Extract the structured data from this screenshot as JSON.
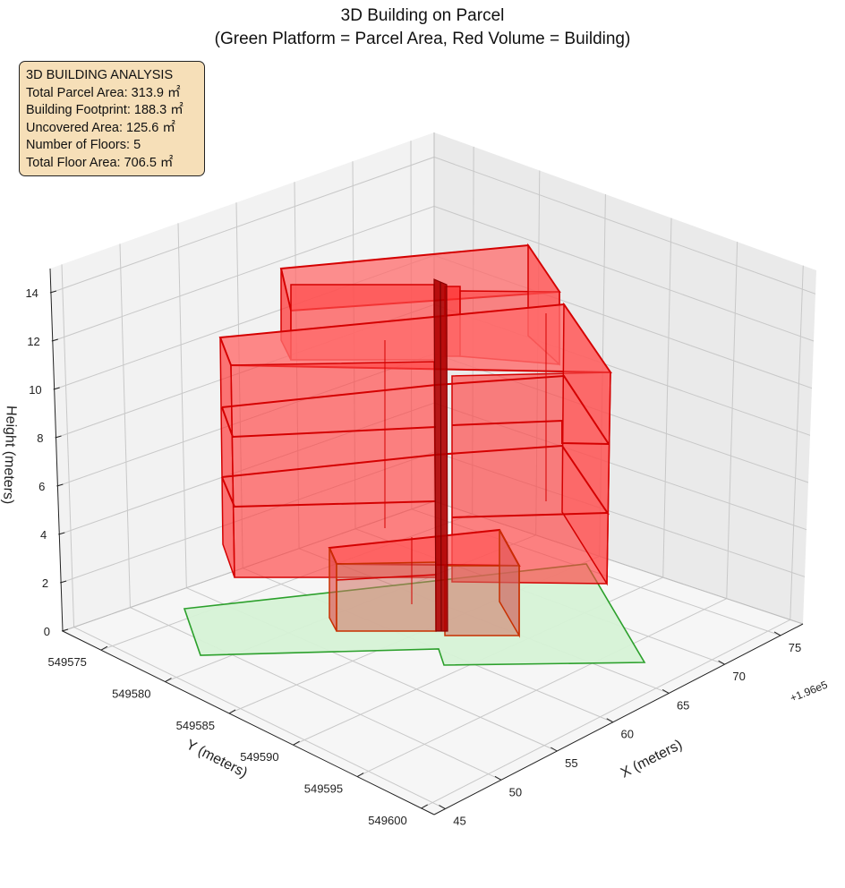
{
  "figure": {
    "title": "3D Building on Parcel",
    "subtitle": "(Green Platform = Parcel Area, Red Volume = Building)"
  },
  "info_box": {
    "heading": "3D BUILDING ANALYSIS",
    "lines": [
      "Total Parcel Area: 313.9 ㎡",
      "Building Footprint: 188.3 ㎡",
      "Uncovered Area: 125.6 ㎡",
      "Number of Floors: 5",
      "Total Floor Area: 706.5 ㎡"
    ]
  },
  "colors": {
    "parcel_fill": "#d6f2d6",
    "parcel_edge": "#2ca02c",
    "building_fill": "#ff3b3b",
    "building_edge": "#d40000",
    "pane": "#f2f2f2",
    "grid": "#c8c8c8",
    "info_box_bg": "#f5deb3"
  },
  "chart_data": {
    "type": "3d-polygons",
    "axes": {
      "x": {
        "label": "X (meters)",
        "ticks": [
          45,
          50,
          55,
          60,
          65,
          70,
          75
        ],
        "offset_label": "+1.96e5",
        "range": [
          44,
          77
        ]
      },
      "y": {
        "label": "Y (meters)",
        "ticks": [
          549575,
          549580,
          549585,
          549590,
          549595,
          549600
        ],
        "range": [
          549572,
          549601
        ]
      },
      "z": {
        "label": "Height (meters)",
        "ticks": [
          0,
          2,
          4,
          6,
          8,
          10,
          12,
          14
        ],
        "range": [
          0,
          15
        ]
      }
    },
    "grid": true,
    "parcel_area": 313.9,
    "building_footprint": 188.3,
    "uncovered_area": 125.6,
    "floors": 5,
    "total_floor_area": 706.5
  }
}
